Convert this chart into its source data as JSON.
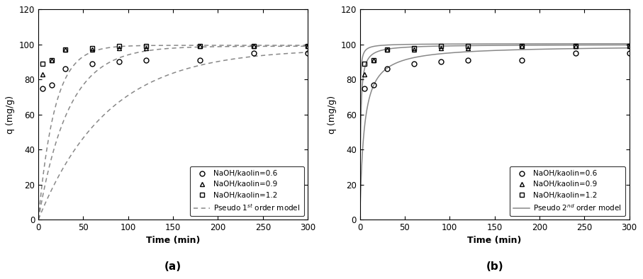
{
  "scatter_time": [
    5,
    15,
    30,
    60,
    90,
    120,
    180,
    240,
    300
  ],
  "scatter_06": [
    75,
    77,
    86,
    89,
    90,
    91,
    91,
    95,
    95
  ],
  "scatter_09": [
    83,
    91,
    97,
    97,
    98,
    98,
    99,
    99,
    99
  ],
  "scatter_12": [
    89,
    91,
    97,
    98,
    99,
    99,
    99,
    99,
    99
  ],
  "xlim": [
    0,
    300
  ],
  "ylim": [
    0,
    120
  ],
  "yticks": [
    0,
    20,
    40,
    60,
    80,
    100,
    120
  ],
  "xticks": [
    0,
    50,
    100,
    150,
    200,
    250,
    300
  ],
  "xlabel": "Time (min)",
  "ylabel": "q (mg/g)",
  "label_a": "(a)",
  "label_b": "(b)",
  "legend_entries": [
    "NaOH/kaolin=0.6",
    "NaOH/kaolin=0.9",
    "NaOH/kaolin=1.2"
  ],
  "legend_model_a": "Pseudo 1$^{st}$ order model",
  "legend_model_b": "Pseudo 2$^{nd}$ order model",
  "model_color": "#888888",
  "scatter_color": "#000000",
  "background": "#ffffff",
  "pseudo1_params": {
    "qe_06": 97.5,
    "k1_06": 0.013,
    "qe_09": 99.0,
    "k1_09": 0.03,
    "qe_12": 99.5,
    "k1_12": 0.055
  },
  "pseudo2_params": {
    "qe_06": 99.5,
    "k2_06": 0.0022,
    "qe_09": 100.0,
    "k2_09": 0.012,
    "qe_12": 100.5,
    "k2_12": 0.04
  }
}
